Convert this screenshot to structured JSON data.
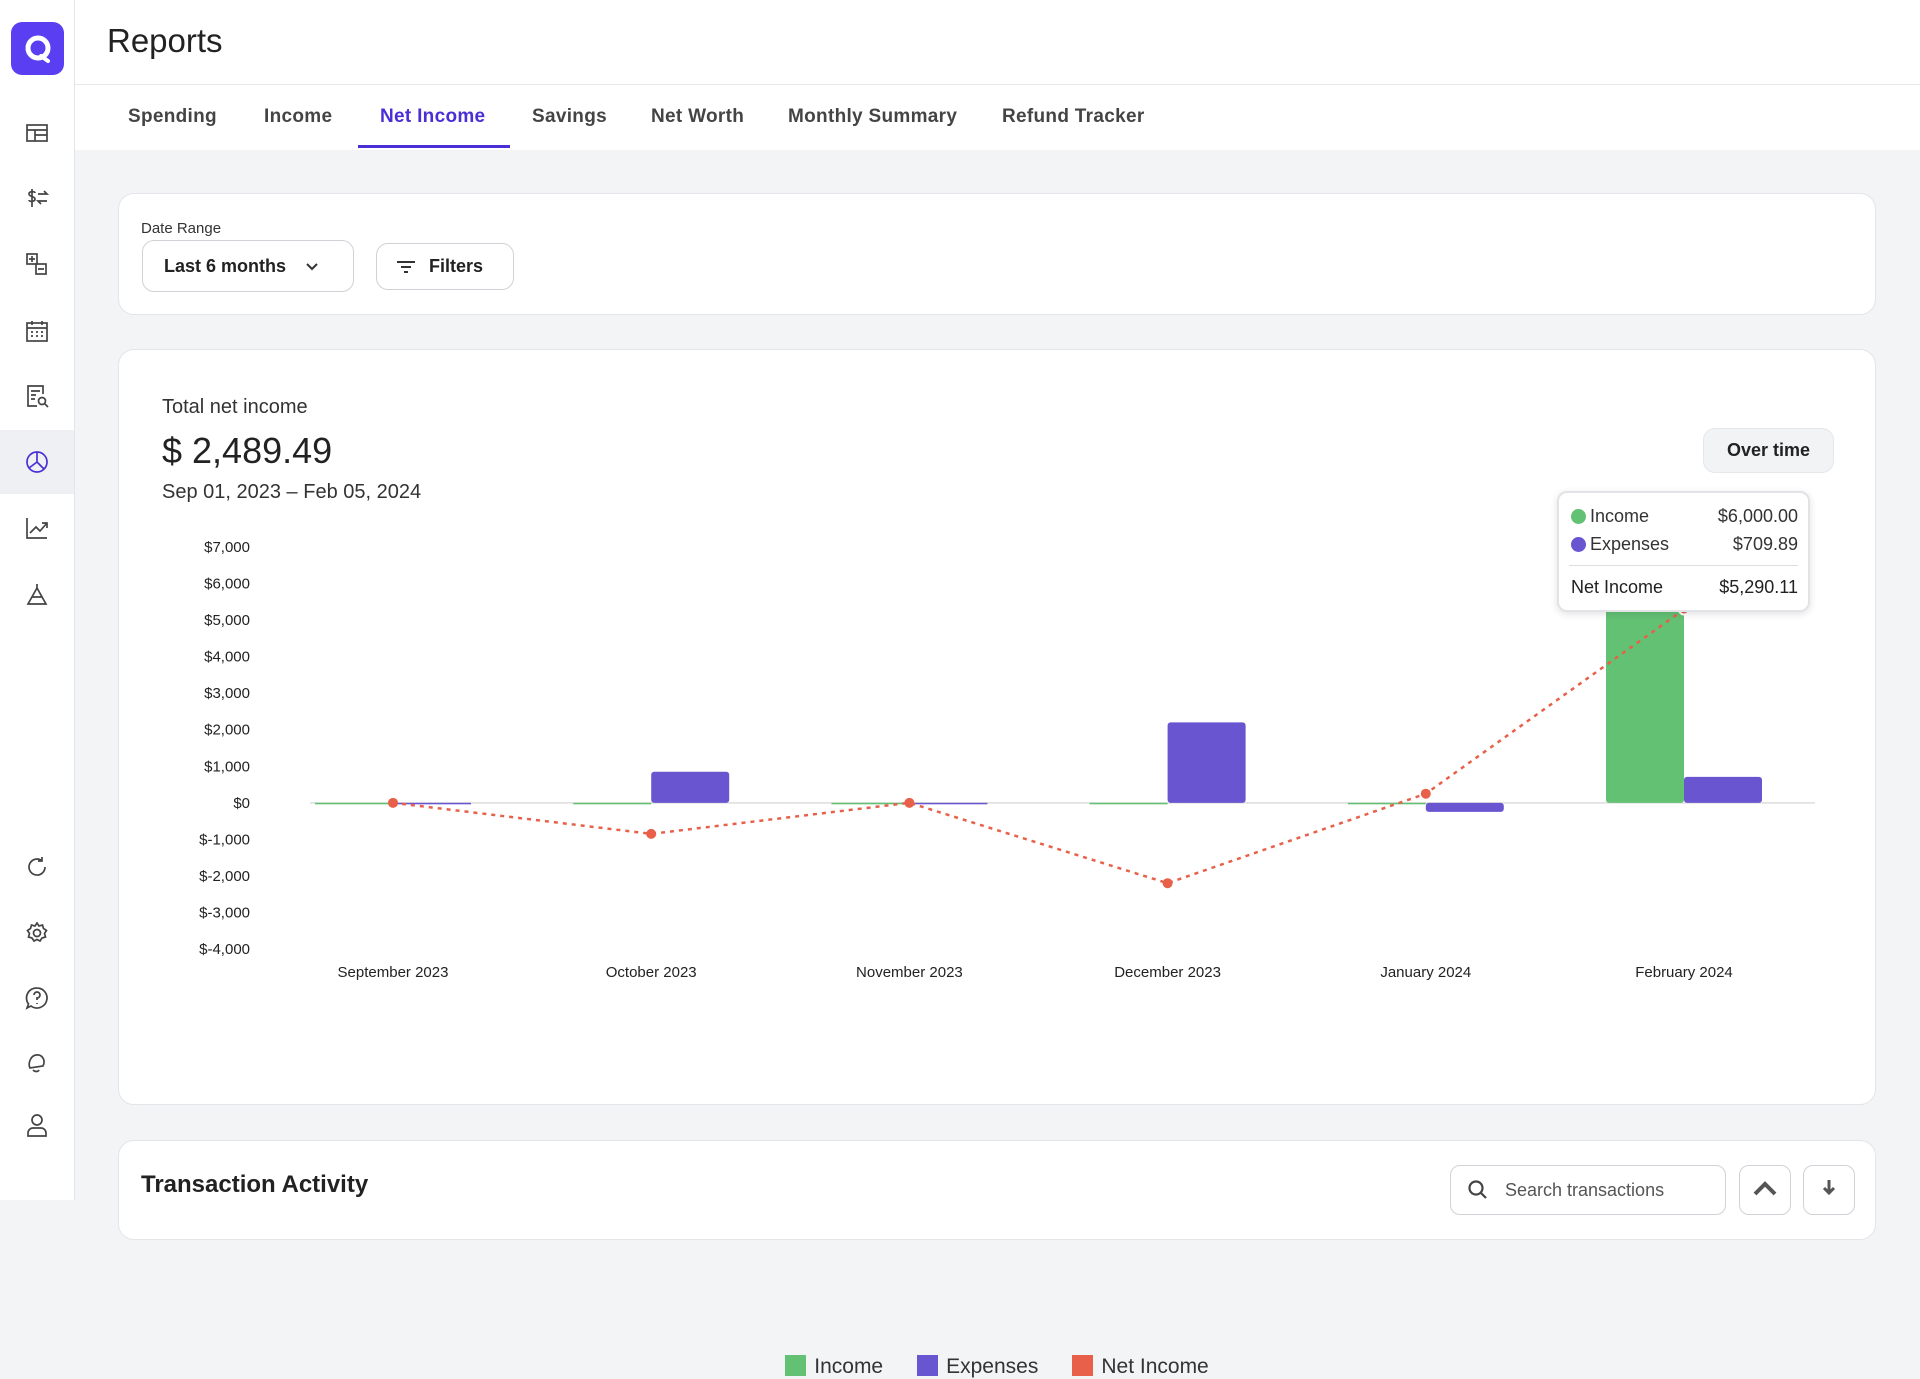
{
  "header": {
    "title": "Reports"
  },
  "tabs": [
    {
      "label": "Spending"
    },
    {
      "label": "Income"
    },
    {
      "label": "Net Income",
      "active": true
    },
    {
      "label": "Savings"
    },
    {
      "label": "Net Worth"
    },
    {
      "label": "Monthly Summary"
    },
    {
      "label": "Refund Tracker"
    }
  ],
  "sidebar": {
    "icons": [
      "dashboard-icon",
      "transactions-icon",
      "budget-icon",
      "calendar-icon",
      "bills-icon",
      "reports-icon",
      "investments-icon",
      "planning-icon",
      "refresh-icon",
      "settings-icon",
      "help-icon",
      "notifications-icon",
      "profile-icon"
    ],
    "active": "reports-icon"
  },
  "filters": {
    "date_range_label": "Date Range",
    "date_range_value": "Last 6 months",
    "filters_label": "Filters"
  },
  "summary": {
    "label": "Total net income",
    "amount": "$ 2,489.49",
    "period": "Sep 01, 2023 – Feb 05, 2024",
    "view_button": "Over time"
  },
  "tooltip": {
    "income_label": "Income",
    "income_value": "$6,000.00",
    "expenses_label": "Expenses",
    "expenses_value": "$709.89",
    "net_label": "Net Income",
    "net_value": "$5,290.11"
  },
  "colors": {
    "income": "#63c174",
    "expenses": "#6a55d0",
    "net": "#e8604a",
    "accent": "#4b2fd6"
  },
  "chart_data": {
    "type": "bar",
    "categories": [
      "September 2023",
      "October 2023",
      "November 2023",
      "December 2023",
      "January 2024",
      "February 2024"
    ],
    "series": [
      {
        "name": "Income",
        "type": "bar",
        "values": [
          0,
          0,
          0,
          0,
          0,
          6000
        ]
      },
      {
        "name": "Expenses",
        "type": "bar",
        "values": [
          0,
          850,
          0,
          2200,
          -249.38,
          709.89
        ]
      },
      {
        "name": "Net Income",
        "type": "line",
        "values": [
          0,
          -850,
          0,
          -2200,
          249.38,
          5290.11
        ]
      }
    ],
    "yticks": [
      "$7,000",
      "$6,000",
      "$5,000",
      "$4,000",
      "$3,000",
      "$2,000",
      "$1,000",
      "$0",
      "$-1,000",
      "$-2,000",
      "$-3,000",
      "$-4,000"
    ],
    "ylim": [
      -4000,
      7000
    ],
    "legend": [
      "Income",
      "Expenses",
      "Net Income"
    ],
    "legend_position": "bottom"
  },
  "transactions": {
    "title": "Transaction Activity",
    "search_placeholder": "Search transactions"
  }
}
